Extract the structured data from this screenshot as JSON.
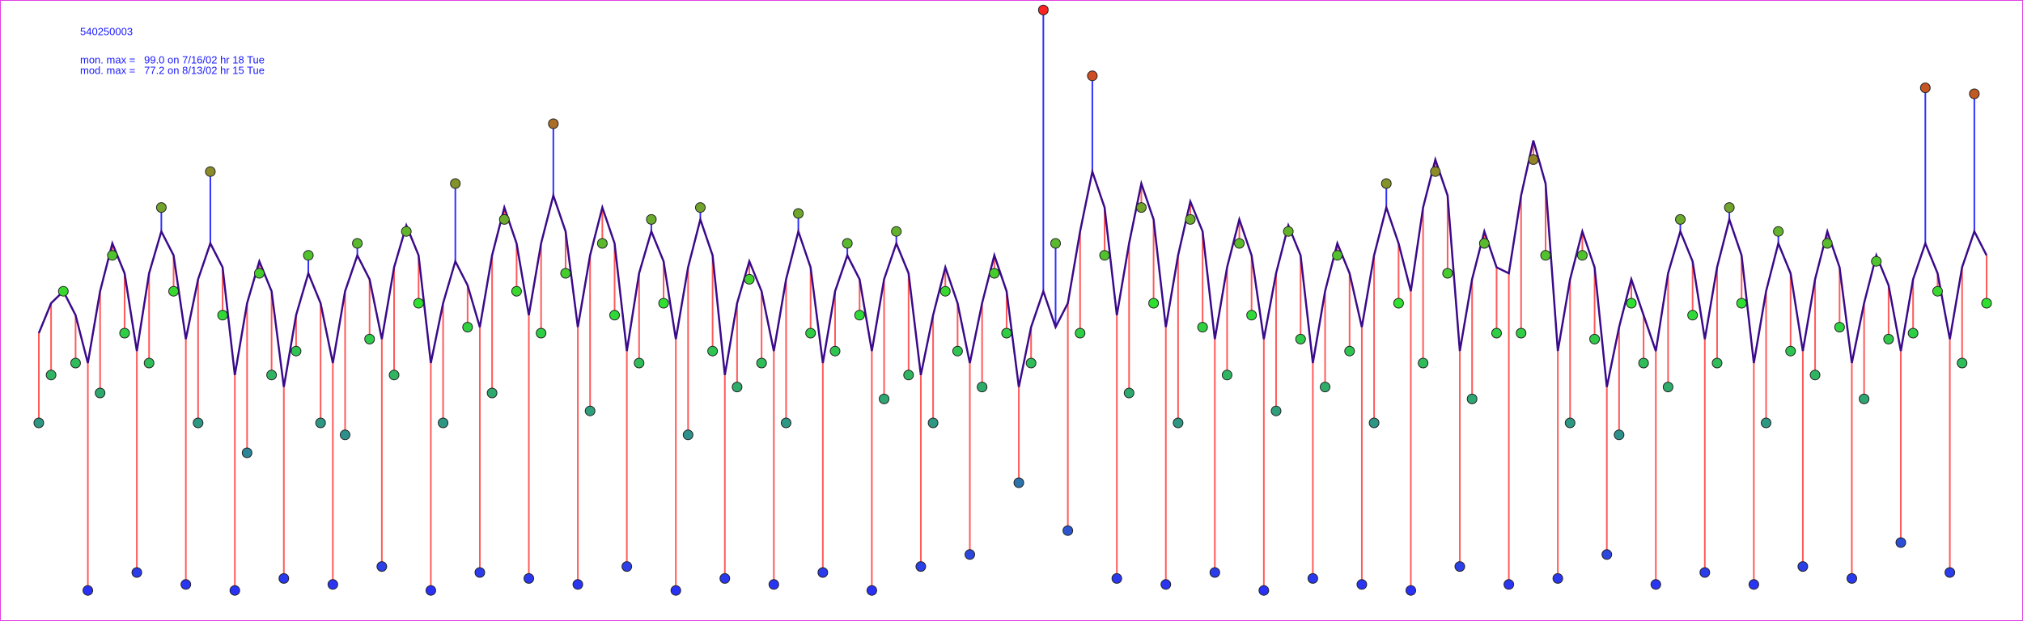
{
  "chart_data": {
    "type": "line",
    "title": "540250003",
    "annotations": [
      "mon. max =   99.0 on 7/16/02 hr 18 Tue",
      "mod. max =   77.2 on 8/13/02 hr 15 Tue"
    ],
    "ylim": [
      0,
      100
    ],
    "line_color": "#3a0a8a",
    "over_color": "#ff5a5a",
    "under_color": "#3030ff",
    "circle_colors": [
      "#2a2aff",
      "#30e030",
      "#ff2020"
    ],
    "series": [
      {
        "values": [
          45,
          50,
          52,
          48,
          40,
          52,
          60,
          55,
          42,
          55,
          62,
          58,
          44,
          54,
          60,
          56,
          38,
          50,
          57,
          52,
          36,
          48,
          55,
          50,
          40,
          52,
          58,
          54,
          44,
          56,
          63,
          58,
          40,
          50,
          57,
          53,
          46,
          58,
          66,
          60,
          48,
          60,
          68,
          62,
          46,
          58,
          66,
          60,
          42,
          55,
          62,
          57,
          44,
          56,
          64,
          58,
          38,
          50,
          57,
          52,
          42,
          54,
          62,
          56,
          40,
          52,
          58,
          54,
          42,
          54,
          60,
          55,
          38,
          48,
          56,
          50,
          40,
          50,
          58,
          52,
          36,
          46,
          52,
          46,
          50,
          62,
          72,
          66,
          48,
          60,
          70,
          64,
          46,
          58,
          67,
          62,
          44,
          56,
          64,
          58,
          44,
          55,
          63,
          58,
          40,
          52,
          60,
          55,
          46,
          58,
          66,
          60,
          52,
          66,
          74,
          68,
          42,
          54,
          62,
          56,
          55,
          68,
          77.2,
          70,
          42,
          54,
          62,
          56,
          36,
          46,
          54,
          48,
          42,
          55,
          62,
          57,
          44,
          56,
          64,
          58,
          40,
          52,
          60,
          55,
          42,
          54,
          62,
          56,
          40,
          50,
          58,
          53,
          42,
          54,
          60,
          55,
          44,
          56,
          62,
          58
        ]
      },
      {
        "values": [
          30,
          38,
          52,
          40,
          2,
          35,
          58,
          45,
          5,
          40,
          66,
          52,
          3,
          30,
          72,
          48,
          2,
          25,
          55,
          38,
          4,
          42,
          58,
          30,
          3,
          28,
          60,
          44,
          6,
          38,
          62,
          50,
          2,
          30,
          70,
          46,
          5,
          35,
          64,
          52,
          4,
          45,
          80,
          55,
          3,
          32,
          60,
          48,
          6,
          40,
          64,
          50,
          2,
          28,
          66,
          42,
          4,
          36,
          54,
          40,
          3,
          30,
          65,
          45,
          5,
          42,
          60,
          48,
          2,
          34,
          62,
          38,
          6,
          30,
          52,
          42,
          8,
          36,
          55,
          45,
          20,
          40,
          99.0,
          60,
          12,
          45,
          88,
          58,
          4,
          35,
          66,
          50,
          3,
          30,
          64,
          46,
          5,
          38,
          60,
          48,
          2,
          32,
          62,
          44,
          4,
          36,
          58,
          42,
          3,
          30,
          70,
          50,
          2,
          40,
          72,
          55,
          6,
          34,
          60,
          45,
          3,
          45,
          74,
          58,
          4,
          30,
          58,
          44,
          8,
          28,
          50,
          40,
          3,
          36,
          64,
          48,
          5,
          40,
          66,
          50,
          3,
          30,
          62,
          42,
          6,
          38,
          60,
          46,
          4,
          34,
          57,
          44,
          10,
          45,
          86,
          52,
          5,
          40,
          85,
          50
        ]
      }
    ]
  }
}
